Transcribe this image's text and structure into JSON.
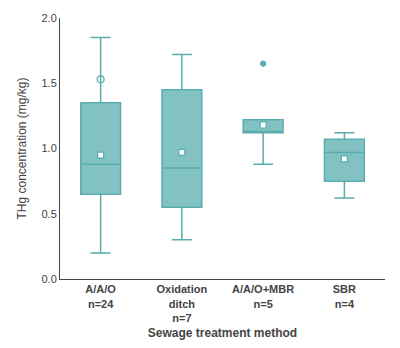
{
  "chart_data": {
    "type": "box",
    "categories": [
      "A/A/O\nn=24",
      "Oxidation\nditch\nn=7",
      "A/A/O+MBR\nn=5",
      "SBR\nn=4"
    ],
    "boxes": [
      {
        "median": 0.88,
        "q1": 0.65,
        "q3": 1.35,
        "lower_whisker": 0.2,
        "upper_whisker": 1.85,
        "mean": 0.95,
        "outliers": [
          1.53
        ],
        "marker": "open circle"
      },
      {
        "median": 0.85,
        "q1": 0.55,
        "q3": 1.45,
        "lower_whisker": 0.3,
        "upper_whisker": 1.72,
        "mean": 0.97,
        "outliers": [],
        "marker": "dot"
      },
      {
        "median": 1.13,
        "q1": 1.12,
        "q3": 1.22,
        "lower_whisker": 0.88,
        "upper_whisker": 1.22,
        "mean": 1.18,
        "outliers": [
          1.65
        ],
        "marker": "dot"
      },
      {
        "median": 0.97,
        "q1": 0.75,
        "q3": 1.07,
        "lower_whisker": 0.62,
        "upper_whisker": 1.12,
        "mean": 0.92,
        "outliers": [],
        "marker": "dot"
      }
    ],
    "color": "#5AADAD",
    "xlabel": "Sewage treatment method",
    "ylabel": "THg concentration (mg/kg)",
    "ylim": [
      0.0,
      2.0
    ],
    "yticks": [
      {
        "value": 0.0,
        "label": "0.0"
      },
      0.5,
      {
        "value": 1.0,
        "label": "1.0"
      },
      1.5,
      {
        "value": 2.0,
        "label": "2.0"
      }
    ],
    "grid": false
  }
}
